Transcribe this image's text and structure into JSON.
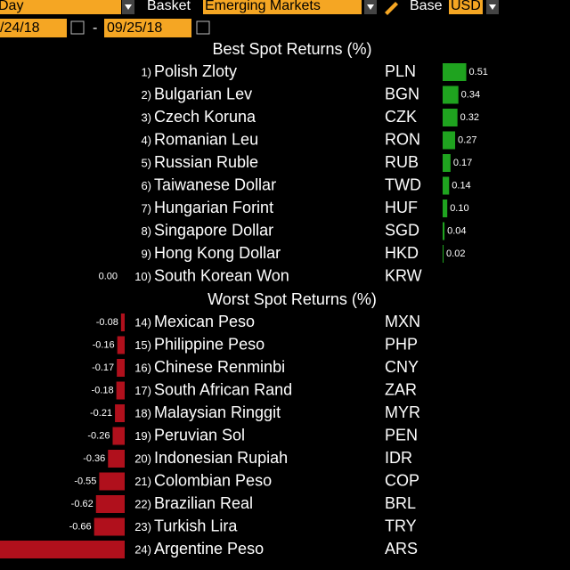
{
  "toolbar": {
    "period": "Day",
    "basket_label": "Basket",
    "basket": "Emerging Markets",
    "base_label": "Base",
    "base": "USD",
    "start_date": "/24/18",
    "date_sep": "-",
    "end_date": "09/25/18"
  },
  "best": {
    "title": "Best Spot Returns (%)",
    "rows": [
      {
        "rank": "1)",
        "name": "Polish Zloty",
        "code": "PLN",
        "value": 0.51
      },
      {
        "rank": "2)",
        "name": "Bulgarian Lev",
        "code": "BGN",
        "value": 0.34
      },
      {
        "rank": "3)",
        "name": "Czech Koruna",
        "code": "CZK",
        "value": 0.32
      },
      {
        "rank": "4)",
        "name": "Romanian Leu",
        "code": "RON",
        "value": 0.27
      },
      {
        "rank": "5)",
        "name": "Russian Ruble",
        "code": "RUB",
        "value": 0.17
      },
      {
        "rank": "6)",
        "name": "Taiwanese Dollar",
        "code": "TWD",
        "value": 0.14
      },
      {
        "rank": "7)",
        "name": "Hungarian Forint",
        "code": "HUF",
        "value": 0.1,
        "label": "0.10"
      },
      {
        "rank": "8)",
        "name": "Singapore Dollar",
        "code": "SGD",
        "value": 0.04
      },
      {
        "rank": "9)",
        "name": "Hong Kong Dollar",
        "code": "HKD",
        "value": 0.02
      },
      {
        "rank": "10)",
        "name": "South Korean Won",
        "code": "KRW",
        "value": 0,
        "label": "0.00"
      }
    ]
  },
  "worst": {
    "title": "Worst Spot Returns (%)",
    "rows": [
      {
        "rank": "14)",
        "name": "Mexican Peso",
        "code": "MXN",
        "value": -0.08
      },
      {
        "rank": "15)",
        "name": "Philippine Peso",
        "code": "PHP",
        "value": -0.16
      },
      {
        "rank": "16)",
        "name": "Chinese Renminbi",
        "code": "CNY",
        "value": -0.17
      },
      {
        "rank": "17)",
        "name": "South African Rand",
        "code": "ZAR",
        "value": -0.18
      },
      {
        "rank": "18)",
        "name": "Malaysian Ringgit",
        "code": "MYR",
        "value": -0.21
      },
      {
        "rank": "19)",
        "name": "Peruvian Sol",
        "code": "PEN",
        "value": -0.26
      },
      {
        "rank": "20)",
        "name": "Indonesian Rupiah",
        "code": "IDR",
        "value": -0.36
      },
      {
        "rank": "21)",
        "name": "Colombian Peso",
        "code": "COP",
        "value": -0.55
      },
      {
        "rank": "22)",
        "name": "Brazilian Real",
        "code": "BRL",
        "value": -0.62
      },
      {
        "rank": "23)",
        "name": "Turkish Lira",
        "code": "TRY",
        "value": -0.66
      },
      {
        "rank": "24)",
        "name": "Argentine Peso",
        "code": "ARS",
        "value": -2.7
      }
    ]
  }
}
